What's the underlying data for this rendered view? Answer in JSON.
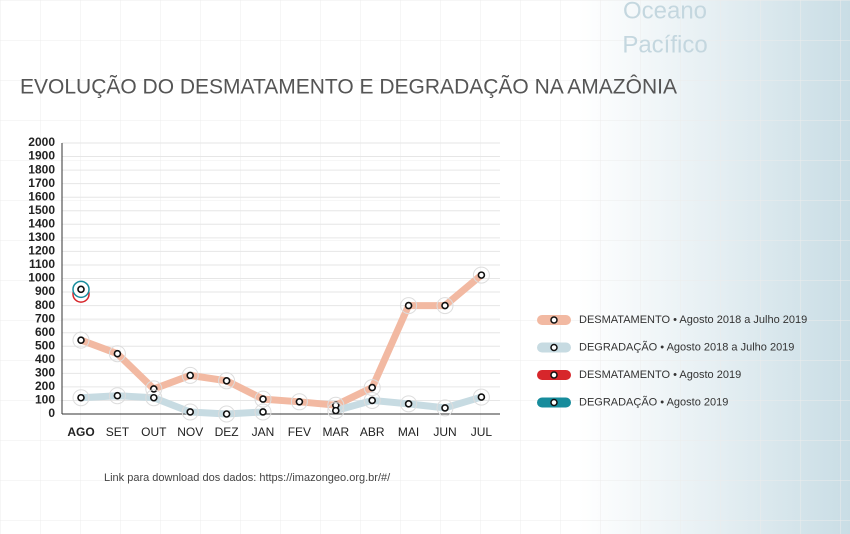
{
  "map_label": [
    "Oceano",
    "Pacífico"
  ],
  "footer": "Link para download dos dados: https://imazongeo.org.br/#/",
  "chart_data": {
    "type": "line",
    "title": "EVOLUÇÃO DO DESMATAMENTO E DEGRADAÇÃO NA AMAZÔNIA",
    "categories": [
      "AGO",
      "SET",
      "OUT",
      "NOV",
      "DEZ",
      "JAN",
      "FEV",
      "MAR",
      "ABR",
      "MAI",
      "JUN",
      "JUL"
    ],
    "series": [
      {
        "name": "DESMATAMENTO • Agosto 2018 a Julho 2019",
        "color": "#f2b9a2",
        "values": [
          545,
          445,
          185,
          285,
          245,
          110,
          90,
          65,
          195,
          800,
          800,
          1025
        ]
      },
      {
        "name": "DEGRADAÇÃO • Agosto 2018 a Julho 2019",
        "color": "#c7dbe2",
        "values": [
          120,
          135,
          120,
          15,
          0,
          15,
          null,
          25,
          100,
          75,
          45,
          125
        ]
      },
      {
        "name": "DESMATAMENTO • Agosto 2019",
        "color": "#d7262b",
        "values": [
          885,
          null,
          null,
          null,
          null,
          null,
          null,
          null,
          null,
          null,
          null,
          null
        ]
      },
      {
        "name": "DEGRADAÇÃO • Agosto 2019",
        "color": "#178c9c",
        "values": [
          920,
          null,
          null,
          null,
          null,
          null,
          null,
          null,
          null,
          null,
          null,
          null
        ]
      }
    ],
    "ylim": [
      0,
      2000
    ],
    "yticks": [
      0,
      100,
      200,
      300,
      400,
      500,
      600,
      700,
      800,
      900,
      1000,
      1100,
      1200,
      1300,
      1400,
      1500,
      1600,
      1700,
      1800,
      1900,
      2000
    ],
    "grid": true,
    "legend": "right"
  }
}
